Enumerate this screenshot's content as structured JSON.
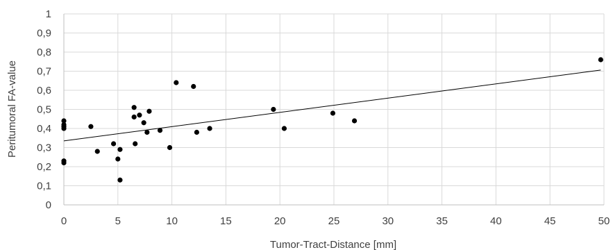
{
  "chart_data": {
    "type": "scatter",
    "title": "",
    "xlabel": "Tumor-Tract-Distance [mm]",
    "ylabel": "Peritumoral FA-value",
    "xlim": [
      0,
      50
    ],
    "ylim": [
      0,
      1
    ],
    "x_ticks": [
      "0",
      "5",
      "10",
      "15",
      "20",
      "25",
      "30",
      "35",
      "40",
      "45",
      "50"
    ],
    "y_ticks": [
      "0",
      "0,1",
      "0,2",
      "0,3",
      "0,4",
      "0,5",
      "0,6",
      "0,7",
      "0,8",
      "0,9",
      "1"
    ],
    "grid": true,
    "legend": "none",
    "marker_color": "#000000",
    "series": [
      {
        "points": [
          {
            "x": 0,
            "y": 0.44
          },
          {
            "x": 0,
            "y": 0.42
          },
          {
            "x": 0,
            "y": 0.41
          },
          {
            "x": 0,
            "y": 0.4
          },
          {
            "x": 0,
            "y": 0.23
          },
          {
            "x": 0,
            "y": 0.22
          },
          {
            "x": 2.5,
            "y": 0.41
          },
          {
            "x": 3.1,
            "y": 0.28
          },
          {
            "x": 4.6,
            "y": 0.32
          },
          {
            "x": 5.0,
            "y": 0.24
          },
          {
            "x": 5.2,
            "y": 0.29
          },
          {
            "x": 5.2,
            "y": 0.13
          },
          {
            "x": 6.5,
            "y": 0.51
          },
          {
            "x": 6.5,
            "y": 0.46
          },
          {
            "x": 6.6,
            "y": 0.32
          },
          {
            "x": 7.0,
            "y": 0.47
          },
          {
            "x": 7.4,
            "y": 0.43
          },
          {
            "x": 7.7,
            "y": 0.38
          },
          {
            "x": 7.9,
            "y": 0.49
          },
          {
            "x": 8.9,
            "y": 0.39
          },
          {
            "x": 9.8,
            "y": 0.3
          },
          {
            "x": 10.4,
            "y": 0.64
          },
          {
            "x": 12.0,
            "y": 0.62
          },
          {
            "x": 12.3,
            "y": 0.38
          },
          {
            "x": 13.5,
            "y": 0.4
          },
          {
            "x": 19.4,
            "y": 0.5
          },
          {
            "x": 20.4,
            "y": 0.4
          },
          {
            "x": 24.9,
            "y": 0.48
          },
          {
            "x": 26.9,
            "y": 0.44
          },
          {
            "x": 49.7,
            "y": 0.76
          }
        ]
      }
    ],
    "trendline": {
      "type": "linear",
      "x_start": 0,
      "x_end": 49.7,
      "y_start": 0.335,
      "y_end": 0.706
    }
  }
}
